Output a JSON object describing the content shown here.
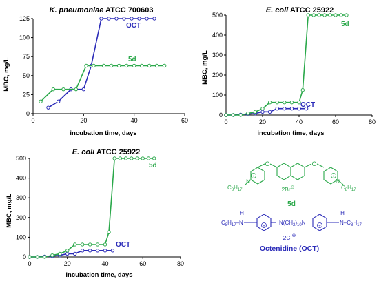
{
  "colors": {
    "oct": "#2b2bb8",
    "d5": "#2aa84a",
    "axis": "#000000"
  },
  "chart_data": [
    {
      "type": "line",
      "title_italic": "K. pneumoniae",
      "title_rest": " ATCC 700603",
      "xlabel": "incubation time, days",
      "ylabel": "MBC, mg/L",
      "xlim": [
        0,
        60
      ],
      "ylim": [
        0,
        125
      ],
      "xticks": [
        0,
        20,
        40,
        60
      ],
      "yticks": [
        0,
        25,
        50,
        75,
        100,
        125
      ],
      "series": [
        {
          "name": "OCT",
          "x": [
            6,
            10,
            15,
            20,
            23,
            27,
            30,
            33,
            36,
            39,
            42,
            45,
            48
          ],
          "y": [
            8,
            16,
            32,
            32,
            63,
            125,
            125,
            125,
            125,
            125,
            125,
            125,
            125
          ]
        },
        {
          "name": "5d",
          "x": [
            3,
            8,
            12,
            17,
            21,
            24,
            28,
            31,
            34,
            37,
            40,
            43,
            46,
            49,
            52
          ],
          "y": [
            16,
            32,
            32,
            32,
            63,
            63,
            63,
            63,
            63,
            63,
            63,
            63,
            63,
            63,
            63
          ]
        }
      ]
    },
    {
      "type": "line",
      "title_italic": "E. coli",
      "title_rest": " ATCC 25922",
      "xlabel": "incubation time, days",
      "ylabel": "MBC, mg/L",
      "xlim": [
        0,
        80
      ],
      "ylim": [
        0,
        500
      ],
      "xticks": [
        0,
        20,
        40,
        60,
        80
      ],
      "yticks": [
        0,
        100,
        200,
        300,
        400,
        500
      ],
      "series": [
        {
          "name": "OCT",
          "x": [
            0,
            4,
            8,
            12,
            16,
            20,
            24,
            28,
            32,
            36,
            40,
            44
          ],
          "y": [
            0,
            0,
            2,
            4,
            8,
            16,
            16,
            32,
            32,
            32,
            32,
            32
          ]
        },
        {
          "name": "5d",
          "x": [
            0,
            4,
            8,
            12,
            16,
            20,
            24,
            28,
            32,
            36,
            40,
            42,
            45,
            48,
            51,
            54,
            57,
            60,
            63,
            66
          ],
          "y": [
            0,
            0,
            0,
            8,
            16,
            32,
            63,
            63,
            63,
            63,
            63,
            125,
            500,
            500,
            500,
            500,
            500,
            500,
            500,
            500
          ]
        }
      ]
    },
    {
      "type": "line",
      "title_italic": "E. coli",
      "title_rest": " ATCC 25922",
      "xlabel": "incubation time, days",
      "ylabel": "MBC, mg/L",
      "xlim": [
        0,
        80
      ],
      "ylim": [
        0,
        500
      ],
      "xticks": [
        0,
        20,
        40,
        60,
        80
      ],
      "yticks": [
        0,
        100,
        200,
        300,
        400,
        500
      ],
      "series": [
        {
          "name": "OCT",
          "x": [
            0,
            4,
            8,
            12,
            16,
            20,
            24,
            28,
            32,
            36,
            40,
            44
          ],
          "y": [
            0,
            0,
            2,
            4,
            8,
            16,
            16,
            32,
            32,
            32,
            32,
            32
          ]
        },
        {
          "name": "5d",
          "x": [
            0,
            4,
            8,
            12,
            16,
            20,
            24,
            28,
            32,
            36,
            40,
            42,
            45,
            48,
            51,
            54,
            57,
            60,
            63,
            66
          ],
          "y": [
            0,
            0,
            0,
            8,
            16,
            32,
            63,
            63,
            63,
            63,
            63,
            125,
            500,
            500,
            500,
            500,
            500,
            500,
            500,
            500
          ]
        }
      ]
    }
  ],
  "structures": {
    "d5": {
      "name": "5d",
      "counterion": "2Br",
      "counterion_charge": "⊖",
      "substituent": "C",
      "sub_8": "8",
      "sub_H": "H",
      "sub_17": "17"
    },
    "oct": {
      "name": "Octenidine (OCT)",
      "amine_H": "H",
      "left_group": "C",
      "sub_8": "8",
      "sub_H": "H",
      "sub_17": "17",
      "N": "N",
      "chain": "(CH",
      "chain_2": "2",
      "chain_close": ")",
      "chain_10": "10",
      "counterion": "2Cl",
      "counterion_charge": "⊖",
      "plus": "+"
    }
  }
}
